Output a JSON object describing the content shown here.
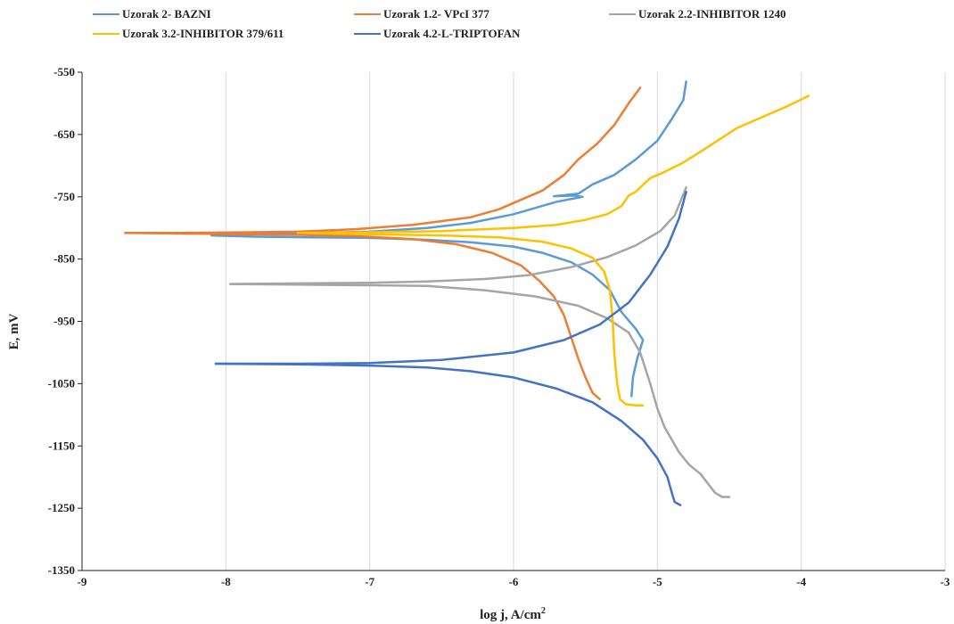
{
  "chart_data": {
    "type": "line",
    "title": "",
    "xlabel": "log j, A/cm",
    "xlabel_sup": "2",
    "ylabel": "E, mV",
    "xlim": [
      -9,
      -3
    ],
    "ylim": [
      -1350,
      -550
    ],
    "xticks": [
      -9,
      -8,
      -7,
      -6,
      -5,
      -4,
      -3
    ],
    "yticks": [
      -550,
      -650,
      -750,
      -850,
      -950,
      -1050,
      -1150,
      -1250,
      -1350
    ],
    "grid": "vertical",
    "legend_position": "top",
    "series": [
      {
        "name": "Uzorak 2- BAZNI",
        "color": "#5b9bd5",
        "x": [
          -5.52,
          -5.58,
          -5.72,
          -5.55,
          -5.45,
          -5.3,
          -5.15,
          -5.0,
          -4.9,
          -4.82,
          -4.8
        ],
        "y": [
          -750,
          -748,
          -749,
          -745,
          -730,
          -715,
          -690,
          -660,
          -625,
          -595,
          -565
        ]
      },
      {
        "name": "Uzorak 2- BAZNI",
        "color": "#5b9bd5",
        "x": [
          -5.52,
          -5.7,
          -6.0,
          -6.3,
          -6.6,
          -7.0,
          -7.4,
          -7.8,
          -8.1,
          -7.8,
          -7.4,
          -7.0,
          -6.6,
          -6.3,
          -6.0,
          -5.8,
          -5.6,
          -5.45,
          -5.33,
          -5.25,
          -5.15,
          -5.1,
          -5.14,
          -5.17,
          -5.18
        ],
        "y": [
          -750,
          -758,
          -778,
          -792,
          -800,
          -806,
          -808,
          -810,
          -812,
          -814,
          -815,
          -816,
          -819,
          -823,
          -830,
          -840,
          -855,
          -875,
          -900,
          -935,
          -962,
          -980,
          -1010,
          -1040,
          -1070
        ]
      },
      {
        "name": "Uzorak 1.2- VPcI 377",
        "color": "#ed7d31",
        "x": [
          -8.7,
          -8.3,
          -7.9,
          -7.5,
          -7.1,
          -6.7,
          -6.3,
          -6.1,
          -5.95,
          -5.8,
          -5.65,
          -5.55,
          -5.42,
          -5.3,
          -5.2,
          -5.12
        ],
        "y": [
          -808,
          -808,
          -807,
          -806,
          -802,
          -795,
          -783,
          -770,
          -755,
          -740,
          -715,
          -690,
          -665,
          -635,
          -600,
          -575
        ]
      },
      {
        "name": "Uzorak 1.2- VPcI 377",
        "color": "#ed7d31",
        "x": [
          -8.7,
          -8.3,
          -7.9,
          -7.5,
          -7.1,
          -6.7,
          -6.4,
          -6.15,
          -5.95,
          -5.82,
          -5.72,
          -5.65,
          -5.6,
          -5.55,
          -5.5,
          -5.45,
          -5.4
        ],
        "y": [
          -808,
          -809,
          -810,
          -811,
          -813,
          -818,
          -826,
          -840,
          -860,
          -885,
          -910,
          -940,
          -975,
          -1010,
          -1040,
          -1065,
          -1075
        ]
      },
      {
        "name": "Uzorak 2.2-INHIBITOR 1240",
        "color": "#a5a5a5",
        "x": [
          -7.97,
          -7.5,
          -7.0,
          -6.6,
          -6.2,
          -5.9,
          -5.6,
          -5.35,
          -5.15,
          -4.98,
          -4.88,
          -4.8
        ],
        "y": [
          -890,
          -889,
          -888,
          -886,
          -882,
          -876,
          -863,
          -847,
          -828,
          -805,
          -780,
          -735
        ]
      },
      {
        "name": "Uzorak 2.2-INHIBITOR 1240",
        "color": "#a5a5a5",
        "x": [
          -7.97,
          -7.5,
          -7.0,
          -6.6,
          -6.2,
          -5.85,
          -5.55,
          -5.35,
          -5.2,
          -5.12,
          -5.05,
          -5.0,
          -4.95,
          -4.9,
          -4.85,
          -4.78,
          -4.7,
          -4.65,
          -4.6,
          -4.55,
          -4.5
        ],
        "y": [
          -890,
          -891,
          -892,
          -893,
          -900,
          -910,
          -925,
          -945,
          -968,
          -1000,
          -1050,
          -1090,
          -1120,
          -1140,
          -1160,
          -1180,
          -1195,
          -1210,
          -1225,
          -1232,
          -1232
        ]
      },
      {
        "name": "Uzorak 3.2-INHIBITOR 379/611",
        "color": "#ffc000",
        "x": [
          -7.5,
          -7.0,
          -6.5,
          -6.0,
          -5.7,
          -5.5,
          -5.35,
          -5.25,
          -5.2,
          -5.15,
          -5.12,
          -5.05,
          -4.95,
          -4.82,
          -4.65,
          -4.45,
          -4.25,
          -4.1,
          -3.95
        ],
        "y": [
          -808,
          -807,
          -805,
          -800,
          -795,
          -787,
          -778,
          -765,
          -748,
          -742,
          -735,
          -720,
          -710,
          -695,
          -670,
          -640,
          -620,
          -605,
          -588
        ]
      },
      {
        "name": "Uzorak 3.2-INHIBITOR 379/611",
        "color": "#ffc000",
        "x": [
          -7.5,
          -7.0,
          -6.5,
          -6.1,
          -5.8,
          -5.6,
          -5.45,
          -5.37,
          -5.33,
          -5.31,
          -5.3,
          -5.28,
          -5.26,
          -5.22,
          -5.15,
          -5.1
        ],
        "y": [
          -808,
          -810,
          -812,
          -815,
          -822,
          -833,
          -848,
          -870,
          -900,
          -950,
          -1000,
          -1050,
          -1075,
          -1083,
          -1085,
          -1085
        ]
      },
      {
        "name": "Uzorak 4.2-L-TRIPTOFAN",
        "color": "#4472c4",
        "x": [
          -8.07,
          -7.5,
          -7.0,
          -6.5,
          -6.0,
          -5.65,
          -5.4,
          -5.2,
          -5.05,
          -4.93,
          -4.85,
          -4.8
        ],
        "y": [
          -1018,
          -1018,
          -1017,
          -1012,
          -1000,
          -980,
          -955,
          -920,
          -875,
          -830,
          -785,
          -742
        ]
      },
      {
        "name": "Uzorak 4.2-L-TRIPTOFAN",
        "color": "#4472c4",
        "x": [
          -8.07,
          -7.5,
          -7.0,
          -6.6,
          -6.3,
          -6.0,
          -5.7,
          -5.45,
          -5.25,
          -5.1,
          -5.0,
          -4.93,
          -4.9,
          -4.88,
          -4.84
        ],
        "y": [
          -1018,
          -1019,
          -1021,
          -1024,
          -1030,
          -1040,
          -1058,
          -1080,
          -1110,
          -1140,
          -1170,
          -1200,
          -1225,
          -1240,
          -1245
        ]
      }
    ]
  },
  "legend": {
    "entries": [
      {
        "label": "Uzorak 2- BAZNI",
        "color": "#5b9bd5"
      },
      {
        "label": "Uzorak 1.2- VPcI 377",
        "color": "#ed7d31"
      },
      {
        "label": "Uzorak 2.2-INHIBITOR 1240",
        "color": "#a5a5a5"
      },
      {
        "label": "Uzorak 3.2-INHIBITOR 379/611",
        "color": "#ffc000"
      },
      {
        "label": "Uzorak 4.2-L-TRIPTOFAN",
        "color": "#4472c4"
      }
    ]
  }
}
